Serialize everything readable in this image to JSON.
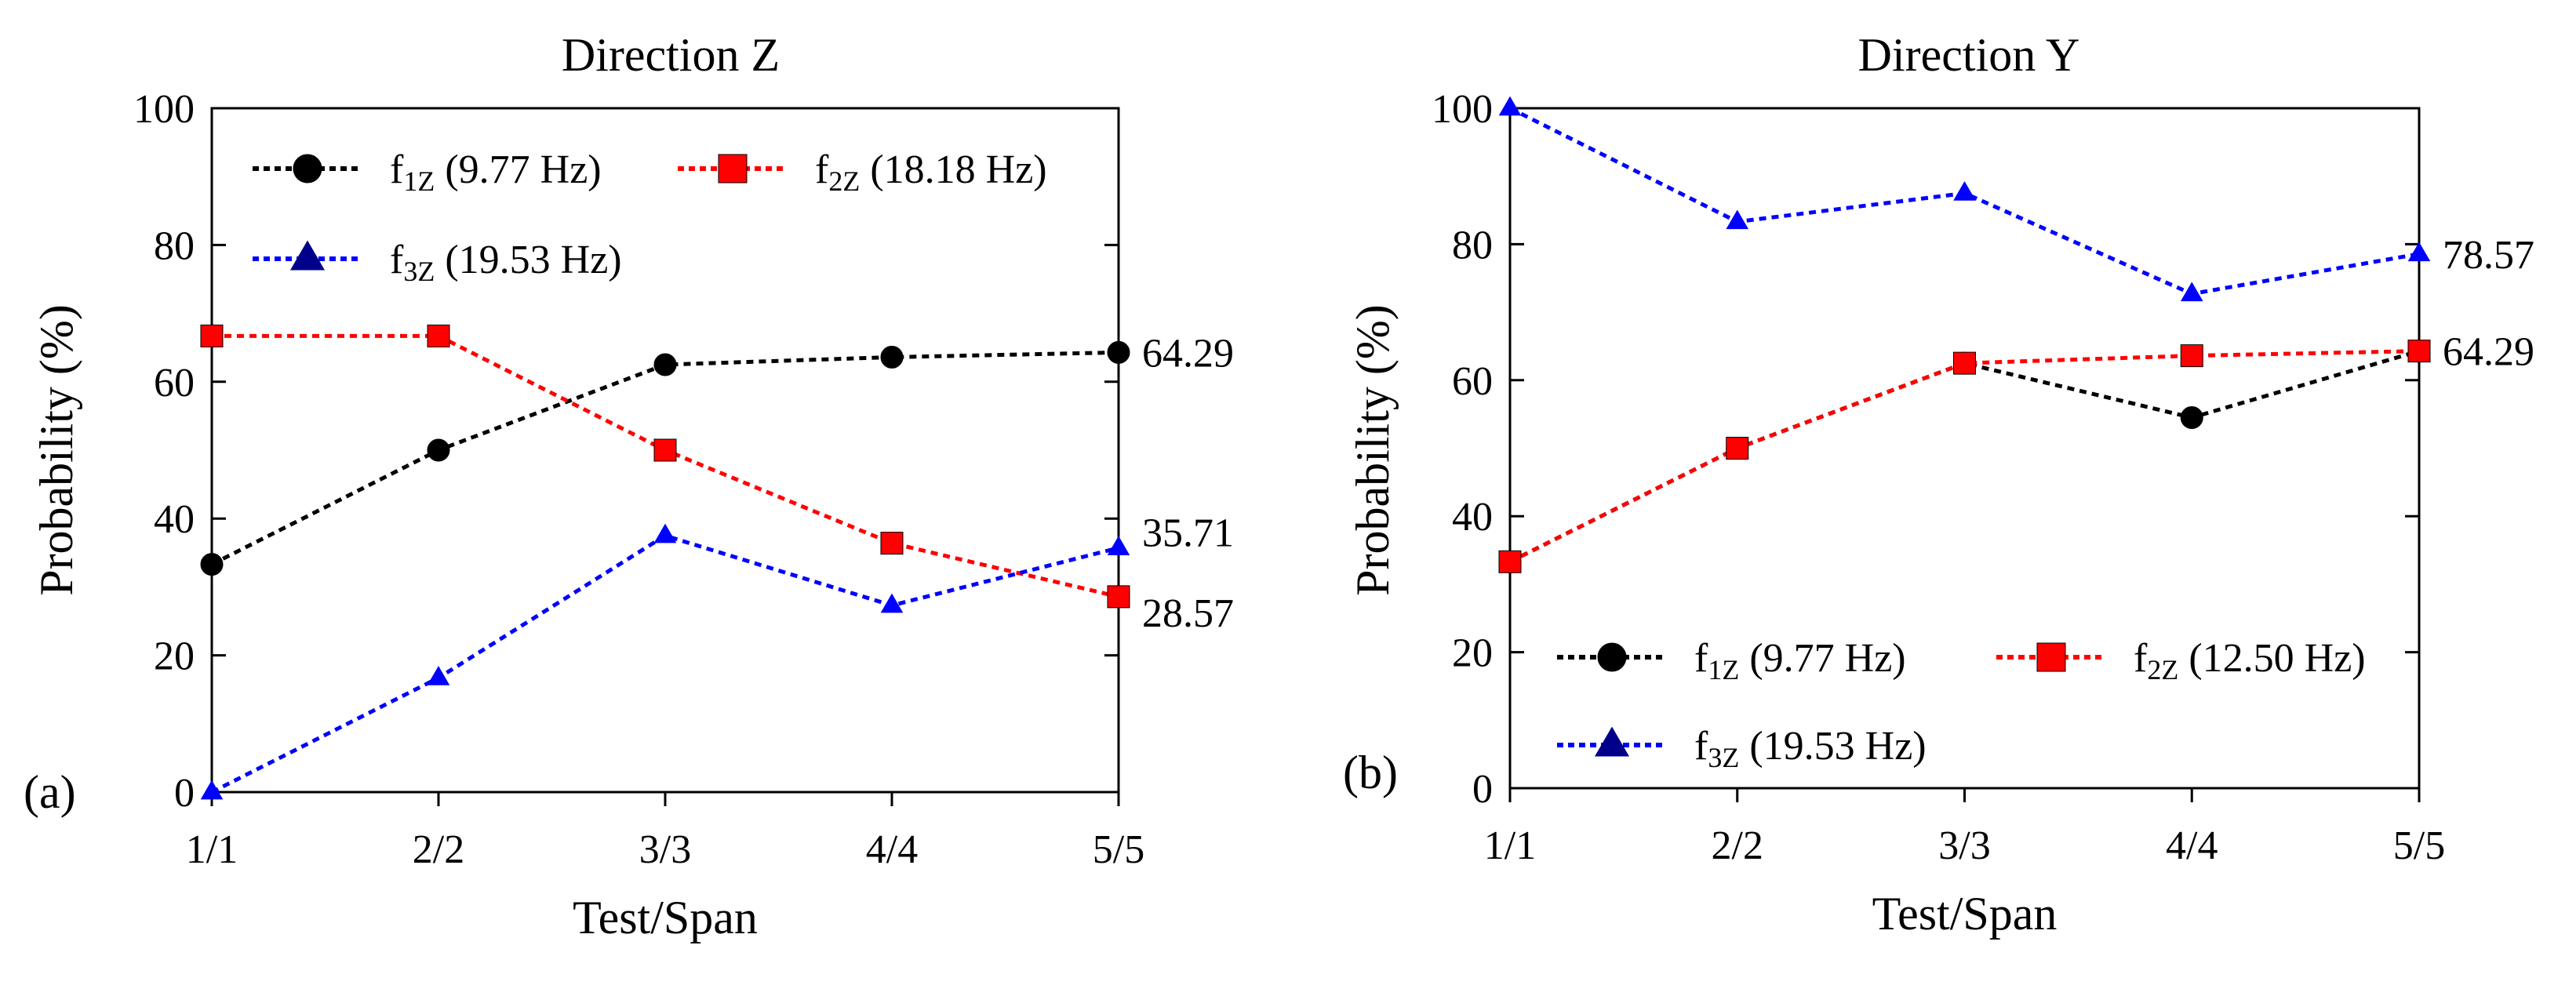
{
  "chart_data": [
    {
      "type": "line",
      "panel_label": "(a)",
      "title": "Direction Z",
      "xlabel": "Test/Span",
      "ylabel": "Probability (%)",
      "categories": [
        "1/1",
        "2/2",
        "3/3",
        "4/4",
        "5/5"
      ],
      "ylim": [
        0,
        100
      ],
      "yticks": [
        0,
        20,
        40,
        60,
        80,
        100
      ],
      "ytick_labels": [
        "0",
        "20",
        "40",
        "60",
        "80",
        "100"
      ],
      "grid": false,
      "legend_position": "top-left",
      "series": [
        {
          "name": "f1Z (9.77 Hz)",
          "legend_main": "f",
          "legend_sub": "1Z",
          "legend_rest": " (9.77 Hz)",
          "color": "#000000",
          "marker": "circle",
          "values": [
            33.3,
            50.0,
            62.5,
            63.6,
            64.29
          ],
          "end_label": "64.29"
        },
        {
          "name": "f2Z (18.18 Hz)",
          "legend_main": "f",
          "legend_sub": "2Z",
          "legend_rest": " (18.18 Hz)",
          "color": "#ff0000",
          "marker": "square",
          "values": [
            66.7,
            66.7,
            50.0,
            36.4,
            28.57
          ],
          "end_label": "28.57"
        },
        {
          "name": "f3Z (19.53 Hz)",
          "legend_main": "f",
          "legend_sub": "3Z",
          "legend_rest": " (19.53 Hz)",
          "color": "#0000ff",
          "legend_marker_color": "#00008b",
          "marker": "triangle",
          "values": [
            0.0,
            16.7,
            37.5,
            27.3,
            35.71
          ],
          "end_label": "35.71"
        }
      ]
    },
    {
      "type": "line",
      "panel_label": "(b)",
      "title": "Direction Y",
      "xlabel": "Test/Span",
      "ylabel": "Probability (%)",
      "categories": [
        "1/1",
        "2/2",
        "3/3",
        "4/4",
        "5/5"
      ],
      "ylim": [
        0,
        100
      ],
      "yticks": [
        0,
        20,
        40,
        60,
        80,
        100
      ],
      "ytick_labels": [
        "0",
        "20",
        "40",
        "60",
        "80",
        "100"
      ],
      "grid": false,
      "legend_position": "bottom-left",
      "series": [
        {
          "name": "f1Z (9.77 Hz)",
          "legend_main": "f",
          "legend_sub": "1Z",
          "legend_rest": " (9.77 Hz)",
          "color": "#000000",
          "marker": "circle",
          "values": [
            33.3,
            50.0,
            62.5,
            54.5,
            64.29
          ],
          "end_label": "64.29"
        },
        {
          "name": "f2Z (12.50 Hz)",
          "legend_main": "f",
          "legend_sub": "2Z",
          "legend_rest": " (12.50 Hz)",
          "color": "#ff0000",
          "marker": "square",
          "values": [
            33.3,
            50.0,
            62.5,
            63.6,
            64.29
          ],
          "end_label": ""
        },
        {
          "name": "f3Z (19.53 Hz)",
          "legend_main": "f",
          "legend_sub": "3Z",
          "legend_rest": " (19.53 Hz)",
          "color": "#0000ff",
          "legend_marker_color": "#00008b",
          "marker": "triangle",
          "values": [
            100.0,
            83.3,
            87.5,
            72.7,
            78.57
          ],
          "end_label": "78.57"
        }
      ]
    }
  ]
}
